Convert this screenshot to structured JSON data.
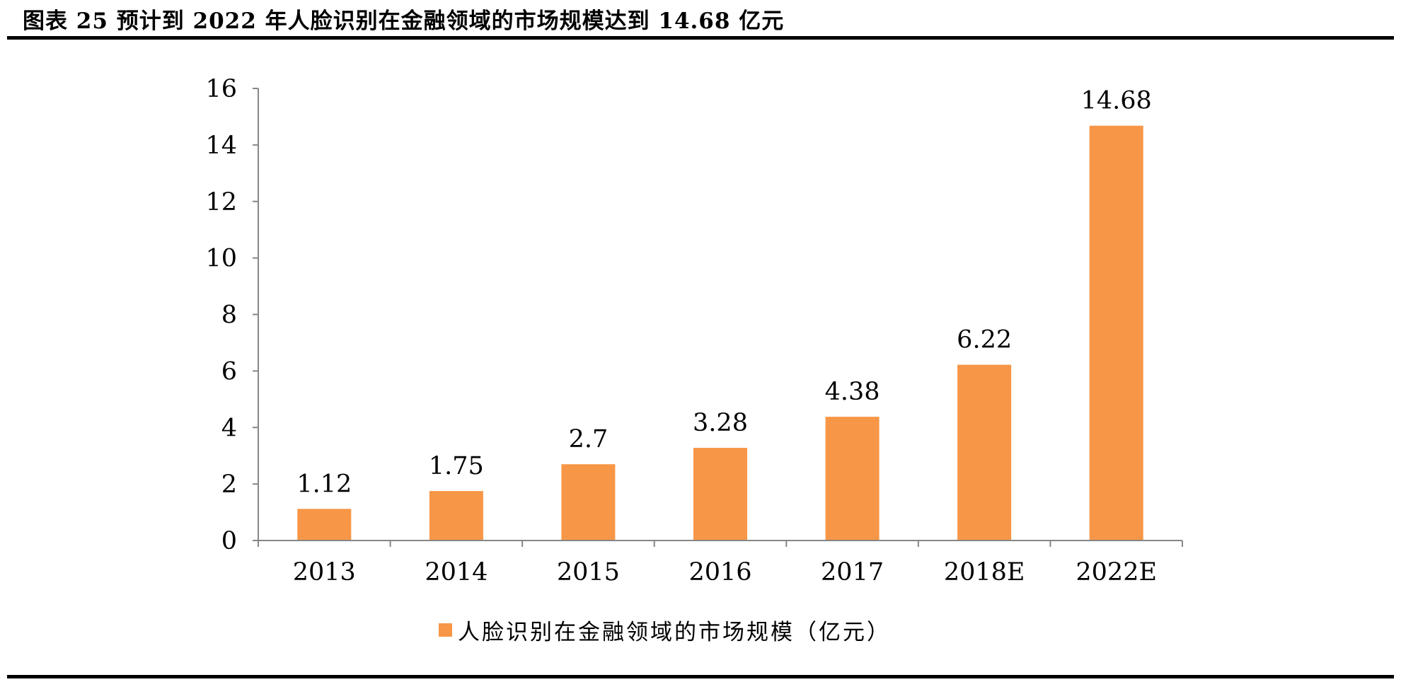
{
  "figure": {
    "title": "图表 25 预计到 2022 年人脸识别在金融领域的市场规模达到 14.68 亿元"
  },
  "chart_data": {
    "type": "bar",
    "categories": [
      "2013",
      "2014",
      "2015",
      "2016",
      "2017",
      "2018E",
      "2022E"
    ],
    "series": [
      {
        "name": "人脸识别在金融领域的市场规模（亿元）",
        "values": [
          1.12,
          1.75,
          2.7,
          3.28,
          4.38,
          6.22,
          14.68
        ],
        "data_labels": [
          "1.12",
          "1.75",
          "2.7",
          "3.28",
          "4.38",
          "6.22",
          "14.68"
        ],
        "color": "#F79646"
      }
    ],
    "ylim": [
      0,
      16
    ],
    "yticks": [
      0,
      2,
      4,
      6,
      8,
      10,
      12,
      14,
      16
    ],
    "xlabel": "",
    "ylabel": "",
    "grid": false,
    "legend": "bottom-center",
    "axis_color": "#868686"
  }
}
